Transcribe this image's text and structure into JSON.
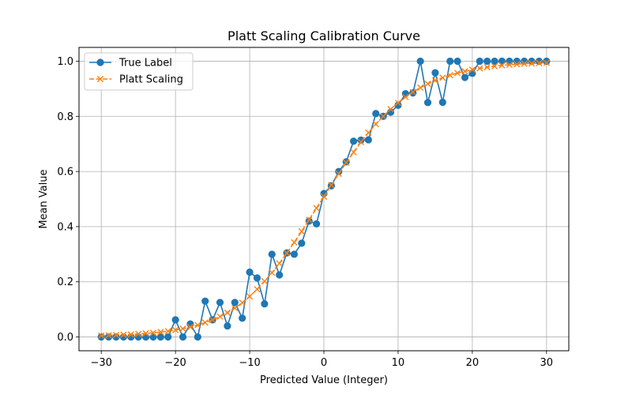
{
  "chart_data": {
    "type": "line",
    "title": "Platt Scaling Calibration Curve",
    "xlabel": "Predicted Value (Integer)",
    "ylabel": "Mean Value",
    "xlim": [
      -33,
      33
    ],
    "ylim": [
      -0.05,
      1.05
    ],
    "xticks": [
      -30,
      -20,
      -10,
      0,
      10,
      20,
      30
    ],
    "yticks": [
      0.0,
      0.2,
      0.4,
      0.6,
      0.8,
      1.0
    ],
    "xtick_labels": [
      "−30",
      "−20",
      "−10",
      "0",
      "10",
      "20",
      "30"
    ],
    "ytick_labels": [
      "0.0",
      "0.2",
      "0.4",
      "0.6",
      "0.8",
      "1.0"
    ],
    "grid": true,
    "legend_position": "top-left",
    "x": [
      -30,
      -29,
      -28,
      -27,
      -26,
      -25,
      -24,
      -23,
      -22,
      -21,
      -20,
      -19,
      -18,
      -17,
      -16,
      -15,
      -14,
      -13,
      -12,
      -11,
      -10,
      -9,
      -8,
      -7,
      -6,
      -5,
      -4,
      -3,
      -2,
      -1,
      0,
      1,
      2,
      3,
      4,
      5,
      6,
      7,
      8,
      9,
      10,
      11,
      12,
      13,
      14,
      15,
      16,
      17,
      18,
      19,
      20,
      21,
      22,
      23,
      24,
      25,
      26,
      27,
      28,
      29,
      30
    ],
    "series": [
      {
        "name": "True Label",
        "color": "#1f77b4",
        "marker": "circle",
        "linestyle": "solid",
        "values": [
          0.0,
          0.0,
          0.0,
          0.0,
          0.0,
          0.0,
          0.0,
          0.0,
          0.0,
          0.0,
          0.062,
          0.0,
          0.047,
          0.0,
          0.13,
          0.062,
          0.125,
          0.04,
          0.125,
          0.068,
          0.235,
          0.214,
          0.12,
          0.3,
          0.225,
          0.305,
          0.3,
          0.34,
          0.42,
          0.41,
          0.52,
          0.548,
          0.6,
          0.635,
          0.71,
          0.714,
          0.715,
          0.81,
          0.8,
          0.815,
          0.84,
          0.882,
          0.885,
          1.0,
          0.85,
          0.958,
          0.851,
          1.0,
          1.0,
          0.941,
          0.956,
          1.0,
          1.0,
          1.0,
          1.0,
          1.0,
          1.0,
          1.0,
          1.0,
          1.0,
          1.0
        ]
      },
      {
        "name": "Platt Scaling",
        "color": "#ff7f0e",
        "marker": "x",
        "linestyle": "dashed",
        "values": [
          0.005,
          0.006,
          0.007,
          0.008,
          0.009,
          0.011,
          0.013,
          0.015,
          0.018,
          0.021,
          0.025,
          0.03,
          0.036,
          0.043,
          0.052,
          0.062,
          0.074,
          0.088,
          0.105,
          0.124,
          0.147,
          0.173,
          0.202,
          0.233,
          0.267,
          0.304,
          0.343,
          0.383,
          0.425,
          0.467,
          0.509,
          0.551,
          0.592,
          0.632,
          0.67,
          0.707,
          0.741,
          0.772,
          0.8,
          0.826,
          0.849,
          0.87,
          0.888,
          0.904,
          0.918,
          0.93,
          0.94,
          0.949,
          0.957,
          0.963,
          0.969,
          0.974,
          0.978,
          0.982,
          0.985,
          0.987,
          0.989,
          0.991,
          0.992,
          0.993,
          0.994
        ]
      }
    ]
  }
}
